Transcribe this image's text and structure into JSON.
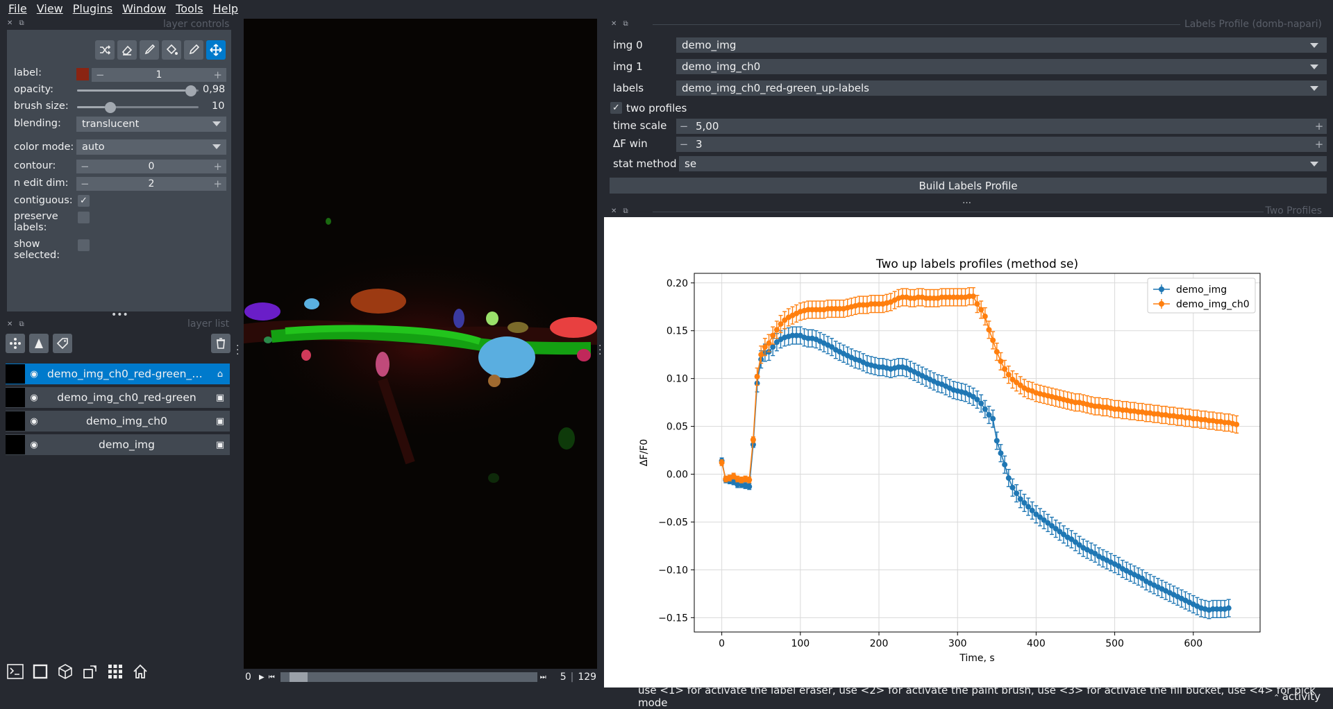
{
  "menu": [
    "File",
    "View",
    "Plugins",
    "Window",
    "Tools",
    "Help"
  ],
  "layer_controls": {
    "title": "layer controls",
    "label_label": "label:",
    "label_value": "1",
    "label_color": "#8a2412",
    "opacity_label": "opacity:",
    "opacity_value": "0,98",
    "opacity_fraction": 0.98,
    "brush_label": "brush size:",
    "brush_value": "10",
    "brush_fraction": 0.25,
    "blending_label": "blending:",
    "blending_value": "translucent",
    "colormode_label": "color mode:",
    "colormode_value": "auto",
    "contour_label": "contour:",
    "contour_value": "0",
    "nedit_label": "n edit dim:",
    "nedit_value": "2",
    "contiguous_label": "contiguous:",
    "contiguous_checked": true,
    "preserve_label1": "preserve",
    "preserve_label2": "labels:",
    "preserve_checked": false,
    "show_label1": "show",
    "show_label2": "selected:",
    "show_checked": false,
    "tools": [
      "shuffle-icon",
      "eraser-icon",
      "brush-icon",
      "fill-bucket-icon",
      "picker-icon",
      "move-icon"
    ],
    "active_tool": "move-icon"
  },
  "layer_list": {
    "title": "layer list",
    "layers": [
      {
        "name": "demo_img_ch0_red-green_up-labels",
        "display": "demo_img_ch0_red-green_up…",
        "selected": true,
        "kind": "labels"
      },
      {
        "name": "demo_img_ch0_red-green",
        "display": "demo_img_ch0_red-green",
        "selected": false,
        "kind": "image"
      },
      {
        "name": "demo_img_ch0",
        "display": "demo_img_ch0",
        "selected": false,
        "kind": "image"
      },
      {
        "name": "demo_img",
        "display": "demo_img",
        "selected": false,
        "kind": "image"
      }
    ]
  },
  "viewer": {
    "slider_start": "0",
    "slider_pos": "5",
    "slider_total": "129",
    "slider_fraction": 0.04
  },
  "labels_profile": {
    "title": "Labels Profile (domb-napari)",
    "img0_label": "img 0",
    "img0_value": "demo_img",
    "img1_label": "img 1",
    "img1_value": "demo_img_ch0",
    "labels_label": "labels",
    "labels_value": "demo_img_ch0_red-green_up-labels",
    "two_profiles_label": "two profiles",
    "two_profiles_checked": true,
    "time_scale_label": "time scale",
    "time_scale_value": "5,00",
    "dfwin_label": "ΔF win",
    "dfwin_value": "3",
    "stat_label": "stat method",
    "stat_value": "se",
    "build_label": "Build Labels Profile",
    "dots": "…"
  },
  "two_profiles": {
    "title": "Two Profiles"
  },
  "chart_data": {
    "type": "line",
    "title": "Two up labels profiles (method se)",
    "xlabel": "Time, s",
    "ylabel": "ΔF/F0",
    "xlim": [
      -35,
      685
    ],
    "ylim": [
      -0.165,
      0.21
    ],
    "xticks": [
      0,
      100,
      200,
      300,
      400,
      500,
      600
    ],
    "yticks": [
      -0.15,
      -0.1,
      -0.05,
      0.0,
      0.05,
      0.1,
      0.15,
      0.2
    ],
    "ytick_labels": [
      "−0.15",
      "−0.10",
      "−0.05",
      "0.00",
      "0.05",
      "0.10",
      "0.15",
      "0.20"
    ],
    "grid": true,
    "legend": "top-right",
    "series": [
      {
        "name": "demo_img",
        "color": "#1f77b4",
        "x_step": 5,
        "values": [
          0.014,
          -0.006,
          -0.007,
          -0.008,
          -0.011,
          -0.011,
          -0.012,
          -0.013,
          0.031,
          0.095,
          0.12,
          0.127,
          0.128,
          0.133,
          0.138,
          0.141,
          0.143,
          0.144,
          0.145,
          0.145,
          0.145,
          0.143,
          0.142,
          0.142,
          0.141,
          0.139,
          0.137,
          0.135,
          0.133,
          0.13,
          0.128,
          0.126,
          0.124,
          0.122,
          0.12,
          0.119,
          0.117,
          0.115,
          0.114,
          0.113,
          0.112,
          0.112,
          0.111,
          0.11,
          0.111,
          0.112,
          0.112,
          0.111,
          0.109,
          0.107,
          0.105,
          0.103,
          0.101,
          0.099,
          0.097,
          0.095,
          0.094,
          0.092,
          0.09,
          0.088,
          0.087,
          0.086,
          0.085,
          0.083,
          0.081,
          0.078,
          0.074,
          0.068,
          0.062,
          0.058,
          0.035,
          0.022,
          0.01,
          -0.004,
          -0.014,
          -0.02,
          -0.026,
          -0.03,
          -0.034,
          -0.038,
          -0.042,
          -0.045,
          -0.048,
          -0.051,
          -0.054,
          -0.057,
          -0.06,
          -0.063,
          -0.066,
          -0.068,
          -0.071,
          -0.074,
          -0.077,
          -0.079,
          -0.081,
          -0.083,
          -0.086,
          -0.088,
          -0.09,
          -0.092,
          -0.094,
          -0.096,
          -0.099,
          -0.101,
          -0.103,
          -0.105,
          -0.107,
          -0.109,
          -0.112,
          -0.114,
          -0.116,
          -0.118,
          -0.12,
          -0.122,
          -0.124,
          -0.126,
          -0.128,
          -0.13,
          -0.132,
          -0.134,
          -0.136,
          -0.138,
          -0.14,
          -0.141,
          -0.142,
          -0.141,
          -0.141,
          -0.141,
          -0.141,
          -0.14
        ]
      },
      {
        "name": "demo_img_ch0",
        "color": "#ff7f0e",
        "x_step": 5,
        "values": [
          0.012,
          -0.005,
          -0.004,
          -0.002,
          -0.005,
          -0.006,
          -0.005,
          -0.006,
          0.036,
          0.102,
          0.125,
          0.133,
          0.137,
          0.145,
          0.151,
          0.157,
          0.161,
          0.164,
          0.166,
          0.168,
          0.17,
          0.171,
          0.172,
          0.172,
          0.172,
          0.172,
          0.172,
          0.173,
          0.173,
          0.173,
          0.173,
          0.173,
          0.174,
          0.175,
          0.176,
          0.177,
          0.177,
          0.177,
          0.178,
          0.178,
          0.178,
          0.178,
          0.179,
          0.18,
          0.182,
          0.184,
          0.185,
          0.185,
          0.184,
          0.184,
          0.185,
          0.185,
          0.184,
          0.184,
          0.184,
          0.184,
          0.185,
          0.185,
          0.185,
          0.185,
          0.185,
          0.185,
          0.185,
          0.186,
          0.186,
          0.178,
          0.172,
          0.165,
          0.151,
          0.14,
          0.128,
          0.118,
          0.11,
          0.104,
          0.099,
          0.096,
          0.093,
          0.09,
          0.088,
          0.087,
          0.085,
          0.084,
          0.083,
          0.082,
          0.081,
          0.08,
          0.079,
          0.078,
          0.077,
          0.076,
          0.075,
          0.075,
          0.074,
          0.073,
          0.072,
          0.071,
          0.071,
          0.07,
          0.07,
          0.069,
          0.068,
          0.068,
          0.067,
          0.067,
          0.066,
          0.066,
          0.065,
          0.065,
          0.064,
          0.064,
          0.063,
          0.063,
          0.062,
          0.062,
          0.061,
          0.061,
          0.06,
          0.06,
          0.059,
          0.059,
          0.058,
          0.058,
          0.057,
          0.057,
          0.056,
          0.056,
          0.055,
          0.055,
          0.054,
          0.054,
          0.053,
          0.052
        ]
      }
    ]
  },
  "status": {
    "message": "use <1> for activate the label eraser, use <2> for activate the paint brush, use <3> for activate the fill bucket, use <4> for pick mode",
    "activity": "activity"
  }
}
